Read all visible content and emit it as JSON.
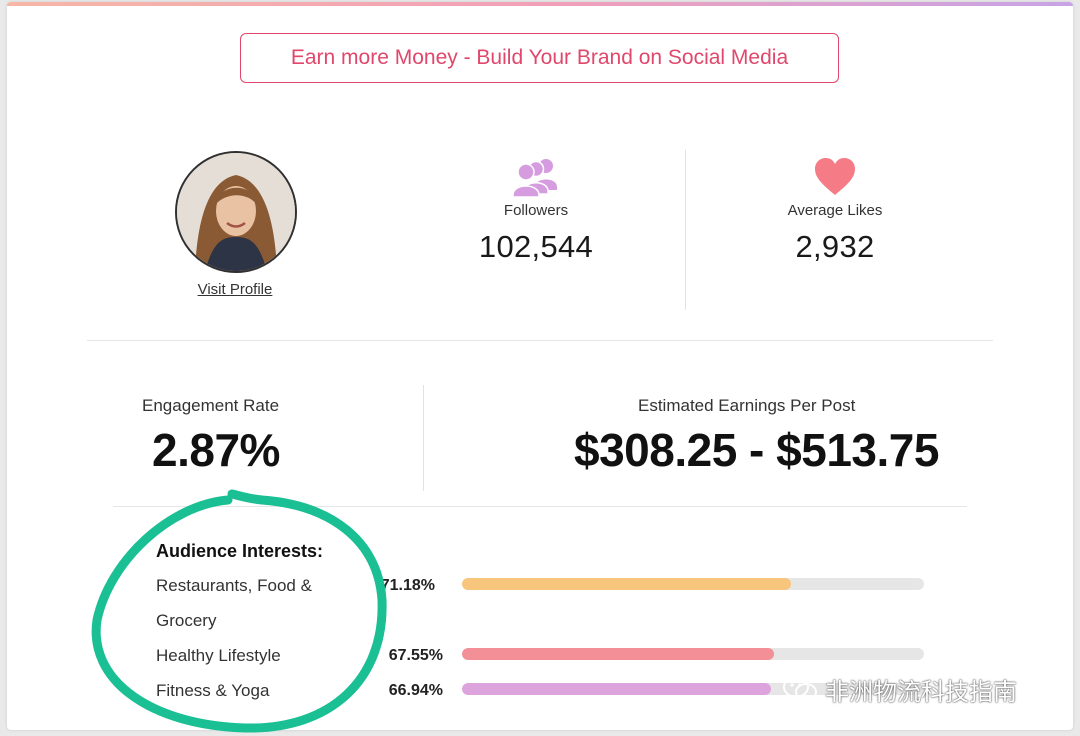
{
  "cta": {
    "label": "Earn more Money - Build Your Brand on Social Media"
  },
  "profile": {
    "visit_label": "Visit Profile"
  },
  "stats": {
    "followers": {
      "label": "Followers",
      "value": "102,544",
      "icon": "users-icon"
    },
    "average_likes": {
      "label": "Average Likes",
      "value": "2,932",
      "icon": "heart-icon"
    }
  },
  "engagement": {
    "label": "Engagement Rate",
    "value": "2.87%"
  },
  "earnings": {
    "label": "Estimated Earnings Per Post",
    "value": "$308.25 - $513.75"
  },
  "interests": {
    "title": "Audience Interests:",
    "items": [
      {
        "label": "Restaurants, Food & Grocery",
        "percent_text": "71.18%",
        "percent": 71.18,
        "color": "#f7c57c"
      },
      {
        "label": "Healthy Lifestyle",
        "percent_text": "67.55%",
        "percent": 67.55,
        "color": "#f38f96"
      },
      {
        "label": "Fitness & Yoga",
        "percent_text": "66.94%",
        "percent": 66.94,
        "color": "#dca3dc"
      }
    ]
  },
  "colors": {
    "accent": "#e0476b",
    "highlight_circle": "#1bbf94",
    "icon_purple": "#d59ce0",
    "icon_heart": "#f57c86"
  },
  "watermark": {
    "text": "非洲物流科技指南"
  }
}
